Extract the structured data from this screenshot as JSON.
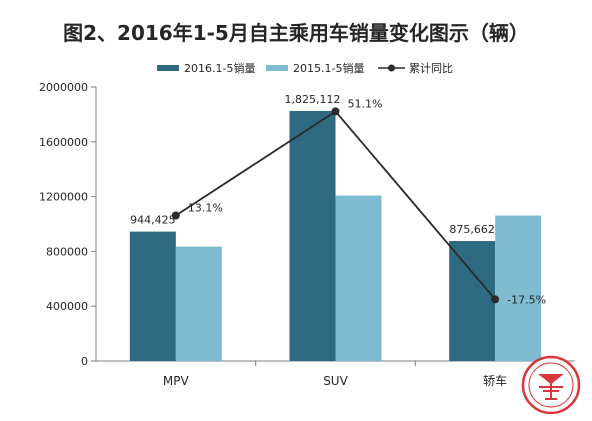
{
  "chart_data": {
    "type": "bar",
    "title": "图2、2016年1-5月自主乘用车销量变化图示（辆）",
    "categories": [
      "MPV",
      "SUV",
      "轿车"
    ],
    "series": [
      {
        "name": "2016.1-5销量",
        "type": "bar",
        "color": "#2e6b82",
        "values": [
          944425,
          1825112,
          875662
        ]
      },
      {
        "name": "2015.1-5销量",
        "type": "bar",
        "color": "#7fbcd2",
        "values": [
          835000,
          1208000,
          1062000
        ]
      },
      {
        "name": "累计同比",
        "type": "line",
        "color": "#2b2b2b",
        "values": [
          13.1,
          51.1,
          -17.5
        ],
        "unit": "%"
      }
    ],
    "data_labels": {
      "bar_2016": [
        "944,425",
        "1,825,112",
        "875,662"
      ],
      "line": [
        "13.1%",
        "51.1%",
        "-17.5%"
      ]
    },
    "ylim": [
      0,
      2000000
    ],
    "yticks": [
      "0",
      "400000",
      "800000",
      "1200000",
      "1600000",
      "2000000"
    ],
    "legend": "top",
    "grid": false,
    "xlabel": "",
    "ylabel": ""
  }
}
